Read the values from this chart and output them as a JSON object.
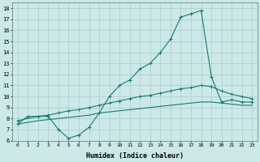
{
  "xlabel": "Humidex (Indice chaleur)",
  "bg_color": "#cce8e8",
  "grid_color": "#aacccc",
  "line_color": "#1a7a6e",
  "xlim": [
    -0.5,
    23.5
  ],
  "ylim": [
    6,
    18.5
  ],
  "xticks": [
    0,
    1,
    2,
    3,
    4,
    5,
    6,
    7,
    8,
    9,
    10,
    11,
    12,
    13,
    14,
    15,
    16,
    17,
    18,
    19,
    20,
    21,
    22,
    23
  ],
  "yticks": [
    6,
    7,
    8,
    9,
    10,
    11,
    12,
    13,
    14,
    15,
    16,
    17,
    18
  ],
  "curve1_x": [
    0,
    1,
    2,
    3,
    4,
    5,
    6,
    7,
    8,
    9,
    10,
    11,
    12,
    13,
    14,
    15,
    16,
    17,
    18,
    19,
    20,
    21,
    22,
    23
  ],
  "curve1_y": [
    7.5,
    8.2,
    8.2,
    8.2,
    7.0,
    6.2,
    6.5,
    7.2,
    8.5,
    10.0,
    11.0,
    11.5,
    12.5,
    13.0,
    14.0,
    15.2,
    17.2,
    17.5,
    17.8,
    11.8,
    9.5,
    9.7,
    9.5,
    9.5
  ],
  "curve2_x": [
    0,
    2,
    3,
    4,
    5,
    6,
    7,
    8,
    9,
    10,
    11,
    12,
    13,
    14,
    15,
    16,
    17,
    18,
    19,
    20,
    21,
    22,
    23
  ],
  "curve2_y": [
    7.8,
    8.2,
    8.3,
    8.5,
    8.7,
    8.8,
    9.0,
    9.2,
    9.4,
    9.6,
    9.8,
    10.0,
    10.1,
    10.3,
    10.5,
    10.7,
    10.8,
    11.0,
    10.9,
    10.5,
    10.2,
    10.0,
    9.8
  ],
  "curve3_x": [
    0,
    2,
    3,
    4,
    5,
    6,
    7,
    8,
    9,
    10,
    11,
    12,
    13,
    14,
    15,
    16,
    17,
    18,
    19,
    20,
    21,
    22,
    23
  ],
  "curve3_y": [
    7.5,
    7.8,
    7.9,
    8.0,
    8.1,
    8.2,
    8.3,
    8.5,
    8.6,
    8.7,
    8.8,
    8.9,
    9.0,
    9.1,
    9.2,
    9.3,
    9.4,
    9.5,
    9.5,
    9.4,
    9.3,
    9.2,
    9.2
  ]
}
